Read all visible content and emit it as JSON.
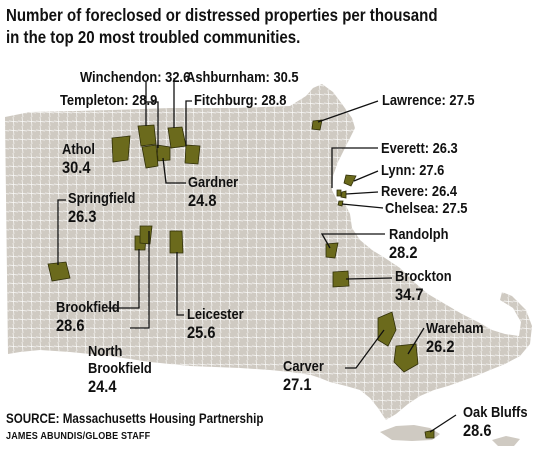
{
  "title": {
    "line1": "Number of foreclosed or distressed properties per thousand",
    "line2": "in the top 20 most troubled communities."
  },
  "communities": [
    {
      "id": "winchendon",
      "name": "Winchendon:",
      "value": "32.6"
    },
    {
      "id": "ashburnham",
      "name": "Ashburnham:",
      "value": "30.5"
    },
    {
      "id": "templeton",
      "name": "Templeton:",
      "value": "28.9"
    },
    {
      "id": "fitchburg",
      "name": "Fitchburg:",
      "value": "28.8"
    },
    {
      "id": "lawrence",
      "name": "Lawrence:",
      "value": "27.5"
    },
    {
      "id": "athol",
      "name": "Athol",
      "value": "30.4"
    },
    {
      "id": "everett",
      "name": "Everett:",
      "value": "26.3"
    },
    {
      "id": "lynn",
      "name": "Lynn:",
      "value": "27.6"
    },
    {
      "id": "revere",
      "name": "Revere:",
      "value": "26.4"
    },
    {
      "id": "chelsea",
      "name": "Chelsea:",
      "value": "27.5"
    },
    {
      "id": "gardner",
      "name": "Gardner",
      "value": "24.8"
    },
    {
      "id": "springfield",
      "name": "Springfield",
      "value": "26.3"
    },
    {
      "id": "randolph",
      "name": "Randolph",
      "value": "28.2"
    },
    {
      "id": "brockton",
      "name": "Brockton",
      "value": "34.7"
    },
    {
      "id": "brookfield",
      "name": "Brookfield",
      "value": "28.6"
    },
    {
      "id": "leicester",
      "name": "Leicester",
      "value": "25.6"
    },
    {
      "id": "wareham",
      "name": "Wareham",
      "value": "26.2"
    },
    {
      "id": "north-brookfield",
      "name": "North Brookfield",
      "name_line1": "North",
      "name_line2": "Brookfield",
      "value": "24.4"
    },
    {
      "id": "carver",
      "name": "Carver",
      "value": "27.1"
    },
    {
      "id": "oak-bluffs",
      "name": "Oak Bluffs",
      "value": "28.6"
    }
  ],
  "source": "SOURCE: Massachusetts Housing Partnership",
  "credit": "JAMES ABUNDIS/GLOBE STAFF",
  "colors": {
    "state_fill": "#cfcac2",
    "town_border": "#ffffff",
    "highlight_fill": "#6b6a1c",
    "highlight_stroke": "#2f2e08",
    "leader_line": "#111111",
    "text": "#111111"
  }
}
